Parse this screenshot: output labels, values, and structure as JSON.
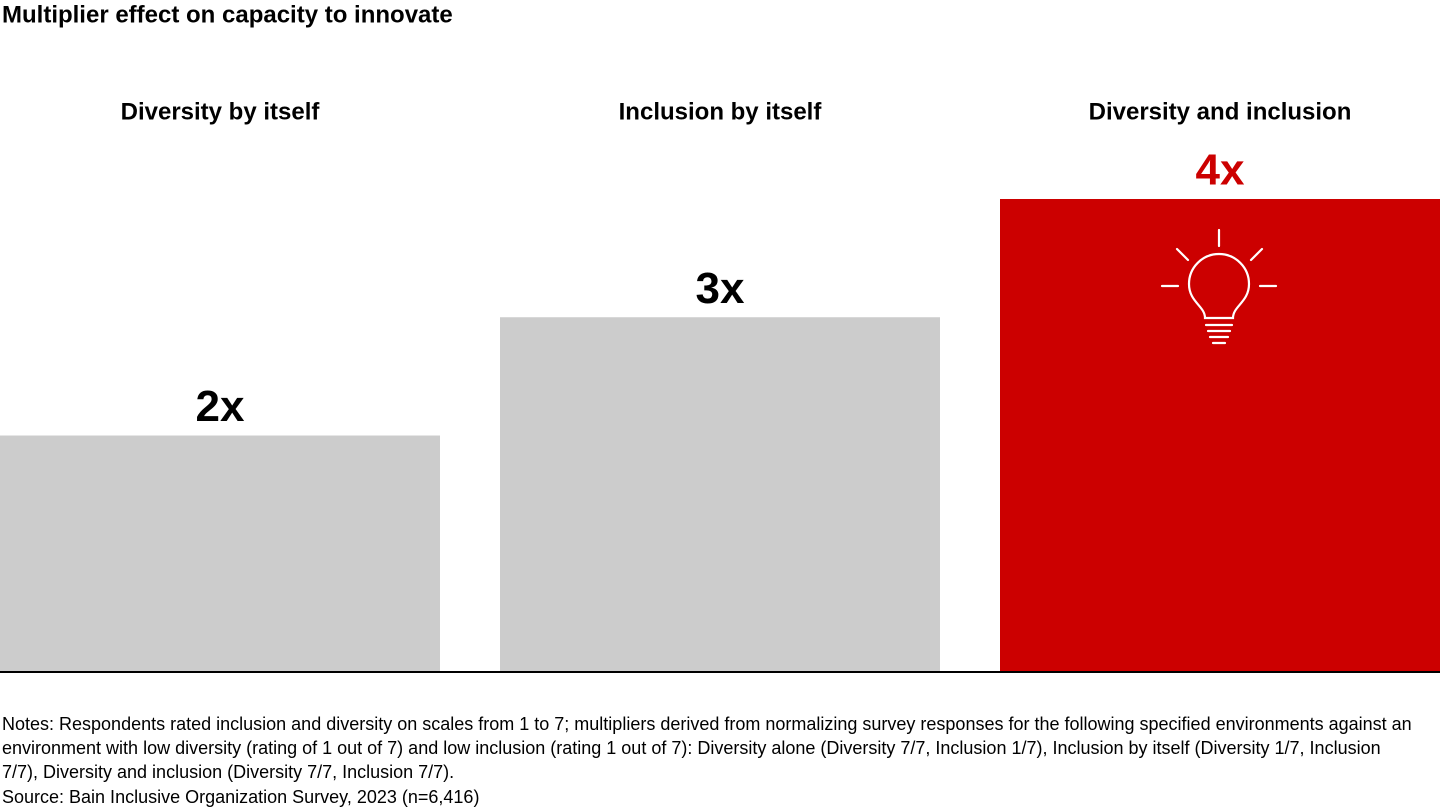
{
  "chart_data": {
    "type": "bar",
    "title": "Multiplier effect on capacity to innovate",
    "categories": [
      "Diversity by itself",
      "Inclusion by itself",
      "Diversity and inclusion"
    ],
    "values": [
      2,
      3,
      4
    ],
    "value_labels": [
      "2x",
      "3x",
      "4x"
    ],
    "colors": [
      "#cccccc",
      "#cccccc",
      "#cc0000"
    ],
    "value_label_colors": [
      "#000000",
      "#000000",
      "#cc0000"
    ],
    "notes": "Notes: Respondents rated inclusion and diversity on scales from 1 to 7; multipliers derived from normalizing survey responses for the following specified environments against an environment with low diversity (rating of 1 out of 7) and low inclusion (rating 1 out of 7): Diversity alone (Diversity 7/7, Inclusion 1/7), Inclusion by itself (Diversity 1/7, Inclusion 7/7), Diversity and inclusion (Diversity 7/7, Inclusion 7/7).",
    "source": "Source: Bain Inclusive Organization Survey, 2023 (n=6,416)"
  }
}
